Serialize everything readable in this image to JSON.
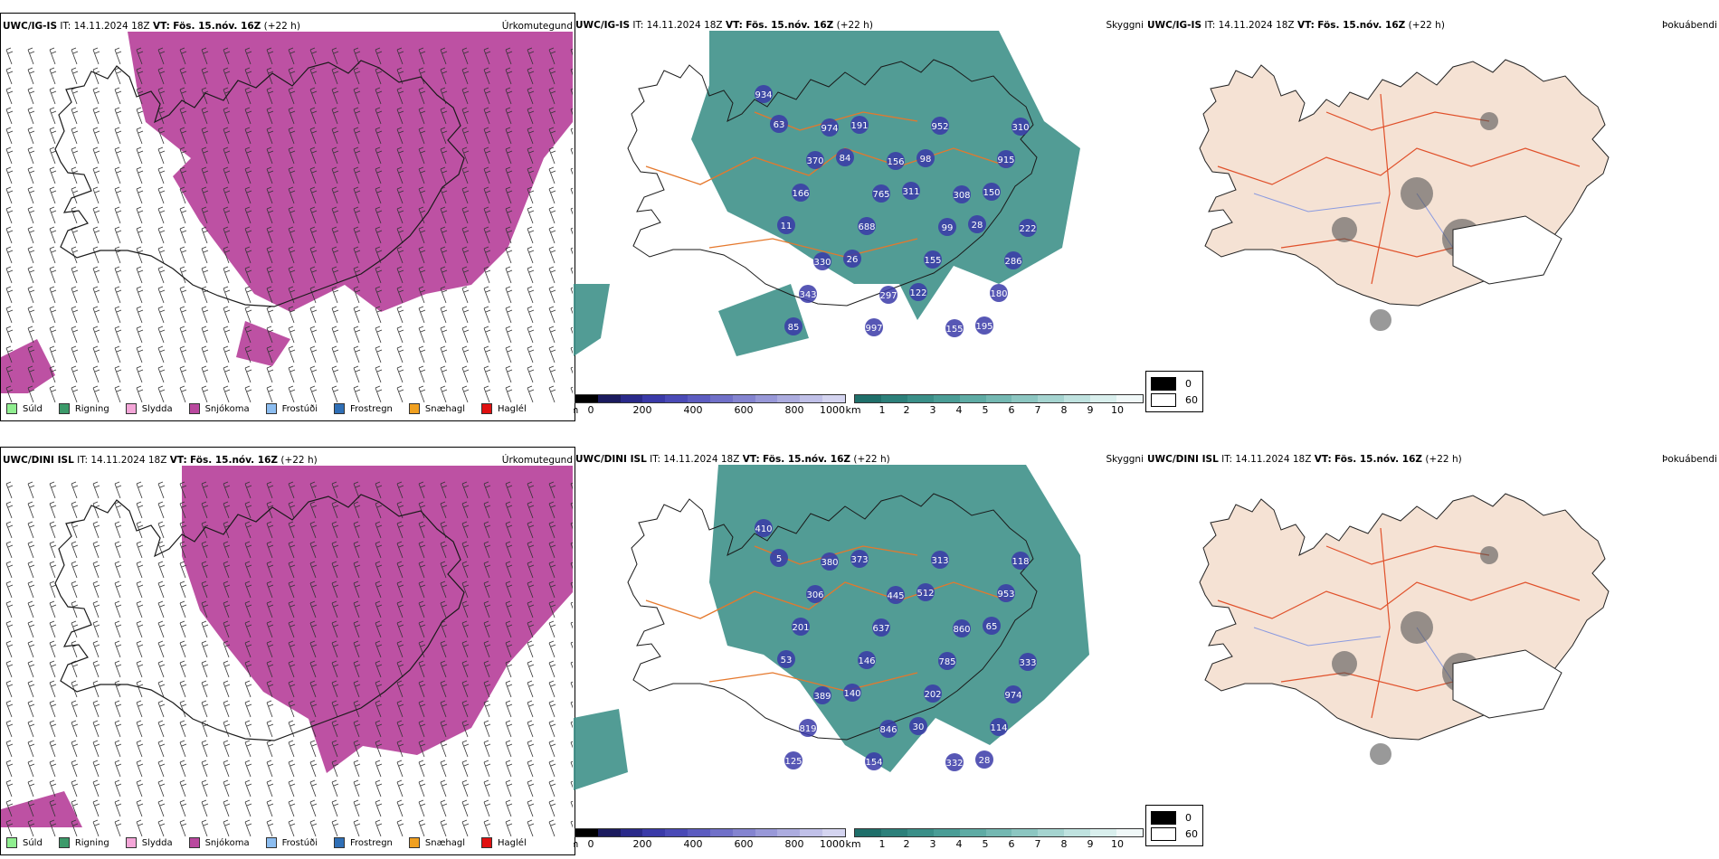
{
  "panels": [
    {
      "model": "UWC/IG-IS",
      "it_label": "IT:",
      "it_value": "14.11.2024 18Z",
      "vt_label": "VT:",
      "vt_value": "Fös. 15.nóv. 16Z",
      "lead": "(+22 h)",
      "field": "Úrkomutegund"
    },
    {
      "model": "UWC/IG-IS",
      "it_label": "IT:",
      "it_value": "14.11.2024 18Z",
      "vt_label": "VT:",
      "vt_value": "Fös. 15.nóv. 16Z",
      "lead": "(+22 h)",
      "field": "Skyggni"
    },
    {
      "model": "UWC/IG-IS",
      "it_label": "IT:",
      "it_value": "14.11.2024 18Z",
      "vt_label": "VT:",
      "vt_value": "Fös. 15.nóv. 16Z",
      "lead": "(+22 h)",
      "field": "Þokuábendi"
    },
    {
      "model": "UWC/DINI ISL",
      "it_label": "IT:",
      "it_value": "14.11.2024 18Z",
      "vt_label": "VT:",
      "vt_value": "Fös. 15.nóv. 16Z",
      "lead": "(+22 h)",
      "field": "Úrkomutegund"
    },
    {
      "model": "UWC/DINI ISL",
      "it_label": "IT:",
      "it_value": "14.11.2024 18Z",
      "vt_label": "VT:",
      "vt_value": "Fös. 15.nóv. 16Z",
      "lead": "(+22 h)",
      "field": "Skyggni"
    },
    {
      "model": "UWC/DINI ISL",
      "it_label": "IT:",
      "it_value": "14.11.2024 18Z",
      "vt_label": "VT:",
      "vt_value": "Fös. 15.nóv. 16Z",
      "lead": "(+22 h)",
      "field": "Þokuábendi"
    }
  ],
  "precip_legend": [
    {
      "label": "Súld",
      "color": "#90ee90"
    },
    {
      "label": "Rigning",
      "color": "#3c9a6a"
    },
    {
      "label": "Slydda",
      "color": "#f4a6d8"
    },
    {
      "label": "Snjókoma",
      "color": "#b9489e"
    },
    {
      "label": "Frostúði",
      "color": "#8cbdf0"
    },
    {
      "label": "Frostregn",
      "color": "#2f6fb6"
    },
    {
      "label": "Snæhagl",
      "color": "#f0a020"
    },
    {
      "label": "Haglél",
      "color": "#e01010"
    }
  ],
  "cloudbase_scale": {
    "unit": "m",
    "ticks": [
      "0",
      "200",
      "400",
      "600",
      "800",
      "1000"
    ],
    "colors": [
      "#000000",
      "#1b1b5e",
      "#2a2a8a",
      "#3a3aa8",
      "#4a4ab6",
      "#5c5cc0",
      "#7070c8",
      "#8484d0",
      "#9898d8",
      "#acacdf",
      "#c0c0e8",
      "#d4d4f0"
    ]
  },
  "visibility_scale": {
    "unit": "km",
    "ticks": [
      "1",
      "2",
      "3",
      "4",
      "5",
      "6",
      "7",
      "8",
      "9",
      "10"
    ],
    "colors": [
      "#1f6f6a",
      "#2c807a",
      "#3a8f88",
      "#4a9d96",
      "#5eaba4",
      "#74b8b2",
      "#8cc6c1",
      "#a5d4d0",
      "#bfe2df",
      "#d9efed",
      "#f0f8f8"
    ]
  },
  "fog_legend": {
    "items": [
      {
        "label": "0",
        "color": "#000000"
      },
      {
        "label": "60",
        "color": "#ffffff"
      }
    ]
  },
  "cloud_labels_top": [
    "934",
    "974",
    "156",
    "308",
    "222",
    "330",
    "297",
    "155",
    "310",
    "370",
    "765",
    "99",
    "286",
    "343",
    "997",
    "952",
    "915",
    "166",
    "688",
    "155",
    "180",
    "85",
    "191",
    "98",
    "150",
    "11",
    "26",
    "122",
    "195",
    "63",
    "84",
    "311",
    "28"
  ],
  "cloud_labels_bottom": [
    "410",
    "380",
    "445",
    "860",
    "333",
    "389",
    "846",
    "332",
    "118",
    "306",
    "637",
    "785",
    "974",
    "819",
    "154",
    "313",
    "953",
    "201",
    "146",
    "202",
    "114",
    "125",
    "373",
    "512",
    "65",
    "53",
    "140",
    "30",
    "28",
    "5"
  ],
  "colors": {
    "snow": "#b9489e",
    "teal": "#3f918a",
    "orange_roads": "#e5782c",
    "fog_land": "#f5e2d4",
    "map_line": "#1a1a1a"
  }
}
